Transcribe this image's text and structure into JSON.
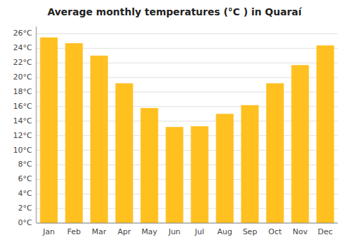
{
  "chart_data": {
    "type": "bar",
    "title": "Average monthly temperatures (°C ) in Quaraí",
    "categories": [
      "Jan",
      "Feb",
      "Mar",
      "Apr",
      "May",
      "Jun",
      "Jul",
      "Aug",
      "Sep",
      "Oct",
      "Nov",
      "Dec"
    ],
    "values": [
      25.5,
      24.7,
      23.0,
      19.2,
      15.8,
      13.2,
      13.3,
      15.0,
      16.2,
      19.2,
      21.7,
      24.4
    ],
    "color": "#FFC020",
    "ylim": [
      0,
      27
    ],
    "yticks": [
      {
        "value": 0,
        "label": "0°C"
      },
      {
        "value": 2,
        "label": "2°C"
      },
      {
        "value": 4,
        "label": "4°C"
      },
      {
        "value": 6,
        "label": "6°C"
      },
      {
        "value": 8,
        "label": "8°C"
      },
      {
        "value": 10,
        "label": "10°C"
      },
      {
        "value": 12,
        "label": "12°C"
      },
      {
        "value": 14,
        "label": "14°C"
      },
      {
        "value": 16,
        "label": "16°C"
      },
      {
        "value": 18,
        "label": "18°C"
      },
      {
        "value": 20,
        "label": "20°C"
      },
      {
        "value": 22,
        "label": "22°C"
      },
      {
        "value": 24,
        "label": "24°C"
      },
      {
        "value": 26,
        "label": "26°C"
      }
    ],
    "grid": true
  }
}
